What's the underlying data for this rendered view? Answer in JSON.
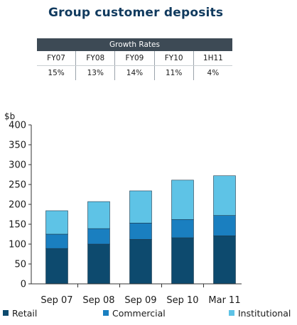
{
  "title": "Group customer deposits",
  "growth_table": {
    "header": "Growth Rates",
    "periods": [
      "FY07",
      "FY08",
      "FY09",
      "FY10",
      "1H11"
    ],
    "rates": [
      "15%",
      "13%",
      "14%",
      "11%",
      "4%"
    ]
  },
  "chart_data": {
    "type": "bar",
    "stacked": true,
    "ylabel": "$b",
    "ylim": [
      0,
      400
    ],
    "yticks": [
      0,
      50,
      100,
      150,
      200,
      250,
      300,
      350,
      400
    ],
    "categories": [
      "Sep 07",
      "Sep 08",
      "Sep 09",
      "Sep 10",
      "Mar 11"
    ],
    "series": [
      {
        "name": "Retail",
        "color": "#0d4a6e",
        "values": [
          89,
          100,
          112,
          116,
          121
        ]
      },
      {
        "name": "Commercial",
        "color": "#1a7fc0",
        "values": [
          36,
          39,
          41,
          46,
          51
        ]
      },
      {
        "name": "Institutional",
        "color": "#5ec3e6",
        "values": [
          59,
          68,
          81,
          99,
          100
        ]
      }
    ],
    "grid": false,
    "legend_position": "bottom"
  }
}
